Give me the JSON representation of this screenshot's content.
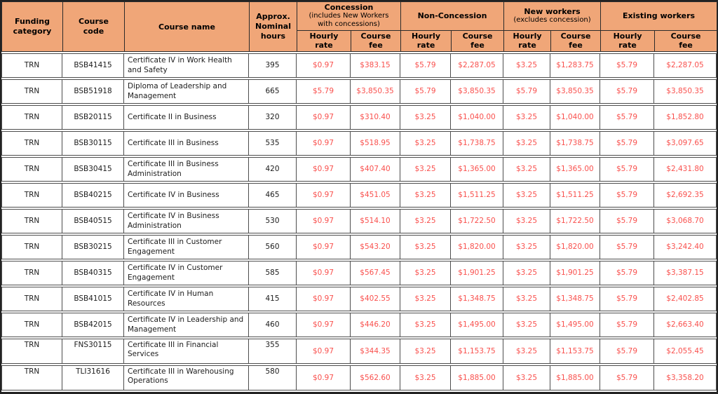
{
  "colors": {
    "header_bg": "#F0A678",
    "money_red": "#F9504D",
    "text_black": "#1C1C1C",
    "grid_line": "#4D4D4D",
    "outer_frame": "#222222"
  },
  "table": {
    "columns": {
      "funding_category": "Funding\ncategory",
      "course_code": "Course\ncode",
      "course_name": "Course name",
      "nominal_hours": "Approx.\nNominal\nhours"
    },
    "groups": [
      {
        "label": "Concession",
        "note": "(includes New Workers\nwith concessions)"
      },
      {
        "label": "Non-Concession",
        "note": ""
      },
      {
        "label": "New workers",
        "note": "(excludes concession)"
      },
      {
        "label": "Existing workers",
        "note": ""
      }
    ],
    "sub_headers": {
      "hourly": "Hourly\nrate",
      "fee": "Course\nfee"
    },
    "rows": [
      {
        "funding": "TRN",
        "code": "BSB41415",
        "name": "Certificate IV in Work Health and Safety",
        "hours": "395",
        "c_hourly": "$0.97",
        "c_fee": "$383.15",
        "nc_hourly": "$5.79",
        "nc_fee": "$2,287.05",
        "nw_hourly": "$3.25",
        "nw_fee": "$1,283.75",
        "ew_hourly": "$5.79",
        "ew_fee": "$2,287.05"
      },
      {
        "funding": "TRN",
        "code": "BSB51918",
        "name": "Diploma of Leadership and Management",
        "hours": "665",
        "c_hourly": "$5.79",
        "c_fee": "$3,850.35",
        "nc_hourly": "$5.79",
        "nc_fee": "$3,850.35",
        "nw_hourly": "$5.79",
        "nw_fee": "$3,850.35",
        "ew_hourly": "$5.79",
        "ew_fee": "$3,850.35"
      },
      {
        "funding": "TRN",
        "code": "BSB20115",
        "name": "Certificate II in Business",
        "hours": "320",
        "c_hourly": "$0.97",
        "c_fee": "$310.40",
        "nc_hourly": "$3.25",
        "nc_fee": "$1,040.00",
        "nw_hourly": "$3.25",
        "nw_fee": "$1,040.00",
        "ew_hourly": "$5.79",
        "ew_fee": "$1,852.80"
      },
      {
        "funding": "TRN",
        "code": "BSB30115",
        "name": "Certificate III in Business",
        "hours": "535",
        "c_hourly": "$0.97",
        "c_fee": "$518.95",
        "nc_hourly": "$3.25",
        "nc_fee": "$1,738.75",
        "nw_hourly": "$3.25",
        "nw_fee": "$1,738.75",
        "ew_hourly": "$5.79",
        "ew_fee": "$3,097.65"
      },
      {
        "funding": "TRN",
        "code": "BSB30415",
        "name": "Certificate III in Business Administration",
        "hours": "420",
        "c_hourly": "$0.97",
        "c_fee": "$407.40",
        "nc_hourly": "$3.25",
        "nc_fee": "$1,365.00",
        "nw_hourly": "$3.25",
        "nw_fee": "$1,365.00",
        "ew_hourly": "$5.79",
        "ew_fee": "$2,431.80"
      },
      {
        "funding": "TRN",
        "code": "BSB40215",
        "name": "Certificate IV in Business",
        "hours": "465",
        "c_hourly": "$0.97",
        "c_fee": "$451.05",
        "nc_hourly": "$3.25",
        "nc_fee": "$1,511.25",
        "nw_hourly": "$3.25",
        "nw_fee": "$1,511.25",
        "ew_hourly": "$5.79",
        "ew_fee": "$2,692.35"
      },
      {
        "funding": "TRN",
        "code": "BSB40515",
        "name": "Certificate IV in Business Administration",
        "hours": "530",
        "c_hourly": "$0.97",
        "c_fee": "$514.10",
        "nc_hourly": "$3.25",
        "nc_fee": "$1,722.50",
        "nw_hourly": "$3.25",
        "nw_fee": "$1,722.50",
        "ew_hourly": "$5.79",
        "ew_fee": "$3,068.70"
      },
      {
        "funding": "TRN",
        "code": "BSB30215",
        "name": "Certificate III in Customer Engagement",
        "hours": "560",
        "c_hourly": "$0.97",
        "c_fee": "$543.20",
        "nc_hourly": "$3.25",
        "nc_fee": "$1,820.00",
        "nw_hourly": "$3.25",
        "nw_fee": "$1,820.00",
        "ew_hourly": "$5.79",
        "ew_fee": "$3,242.40"
      },
      {
        "funding": "TRN",
        "code": "BSB40315",
        "name": "Certificate IV in Customer Engagement",
        "hours": "585",
        "c_hourly": "$0.97",
        "c_fee": "$567.45",
        "nc_hourly": "$3.25",
        "nc_fee": "$1,901.25",
        "nw_hourly": "$3.25",
        "nw_fee": "$1,901.25",
        "ew_hourly": "$5.79",
        "ew_fee": "$3,387.15"
      },
      {
        "funding": "TRN",
        "code": "BSB41015",
        "name": "Certificate IV in Human Resources",
        "hours": "415",
        "c_hourly": "$0.97",
        "c_fee": "$402.55",
        "nc_hourly": "$3.25",
        "nc_fee": "$1,348.75",
        "nw_hourly": "$3.25",
        "nw_fee": "$1,348.75",
        "ew_hourly": "$5.79",
        "ew_fee": "$2,402.85"
      },
      {
        "funding": "TRN",
        "code": "BSB42015",
        "name": "Certificate IV in Leadership and Management",
        "hours": "460",
        "c_hourly": "$0.97",
        "c_fee": "$446.20",
        "nc_hourly": "$3.25",
        "nc_fee": "$1,495.00",
        "nw_hourly": "$3.25",
        "nw_fee": "$1,495.00",
        "ew_hourly": "$5.79",
        "ew_fee": "$2,663.40"
      },
      {
        "funding": "TRN",
        "code": "FNS30115",
        "name": "Certificate III in Financial Services",
        "hours": "355",
        "c_hourly": "$0.97",
        "c_fee": "$344.35",
        "nc_hourly": "$3.25",
        "nc_fee": "$1,153.75",
        "nw_hourly": "$3.25",
        "nw_fee": "$1,153.75",
        "ew_hourly": "$5.79",
        "ew_fee": "$2,055.45"
      },
      {
        "funding": "TRN",
        "code": "TLI31616",
        "name": "Certificate III in Warehousing Operations",
        "hours": "580",
        "c_hourly": "$0.97",
        "c_fee": "$562.60",
        "nc_hourly": "$3.25",
        "nc_fee": "$1,885.00",
        "nw_hourly": "$3.25",
        "nw_fee": "$1,885.00",
        "ew_hourly": "$5.79",
        "ew_fee": "$3,358.20"
      }
    ]
  }
}
